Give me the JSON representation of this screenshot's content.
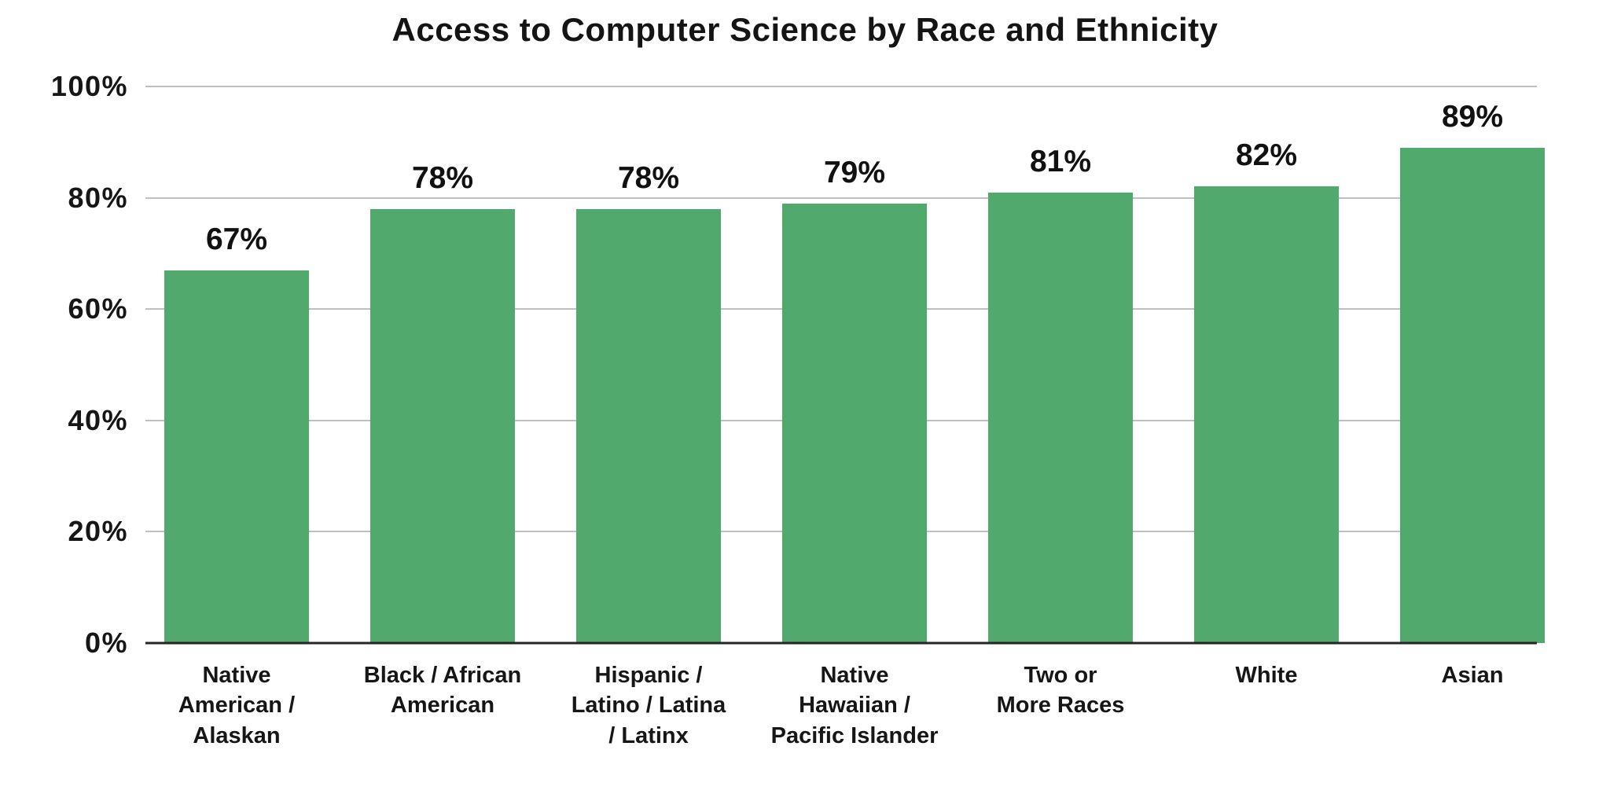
{
  "page": {
    "background_color": "#ffffff"
  },
  "chart_data": {
    "type": "bar",
    "title": "Access to Computer Science by Race and Ethnicity",
    "categories": [
      "Native\nAmerican /\nAlaskan",
      "Black / African\nAmerican",
      "Hispanic /\nLatino / Latina\n/ Latinx",
      "Native\nHawaiian /\nPacific Islander",
      "Two or\nMore Races",
      "White",
      "Asian"
    ],
    "values": [
      67,
      78,
      78,
      79,
      81,
      82,
      89
    ],
    "value_labels": [
      "67%",
      "78%",
      "78%",
      "79%",
      "81%",
      "82%",
      "89%"
    ],
    "xlabel": "",
    "ylabel": "",
    "ylim": [
      0,
      100
    ],
    "y_ticks": [
      {
        "value": 0,
        "label": "0%"
      },
      {
        "value": 20,
        "label": "20%"
      },
      {
        "value": 40,
        "label": "40%"
      },
      {
        "value": 60,
        "label": "60%"
      },
      {
        "value": 80,
        "label": "80%"
      },
      {
        "value": 100,
        "label": "100%"
      }
    ],
    "grid": true,
    "legend": false,
    "bar_color": "#52a96d",
    "grid_color": "#bfbfbf",
    "axis_color": "#252525",
    "text_color": "#161616"
  }
}
